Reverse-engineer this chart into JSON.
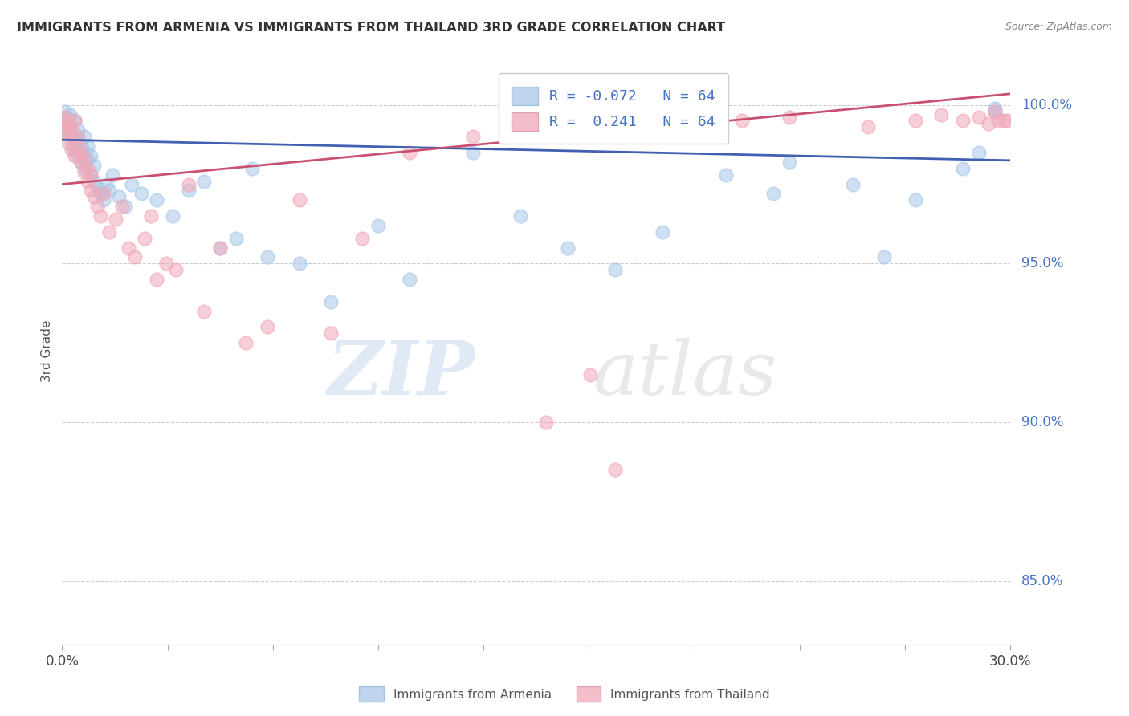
{
  "title": "IMMIGRANTS FROM ARMENIA VS IMMIGRANTS FROM THAILAND 3RD GRADE CORRELATION CHART",
  "source": "Source: ZipAtlas.com",
  "ylabel": "3rd Grade",
  "right_yticks": [
    85.0,
    90.0,
    95.0,
    100.0
  ],
  "right_ytick_labels": [
    "85.0%",
    "90.0%",
    "95.0%",
    "100.0%"
  ],
  "legend_text_1": "R = -0.072   N = 64",
  "legend_text_2": "R =  0.241   N = 64",
  "blue_color": "#a8c8e8",
  "pink_color": "#f0a8b8",
  "blue_line_color": "#4060b0",
  "pink_line_color": "#c85070",
  "watermark_zip": "ZIP",
  "watermark_atlas": "atlas",
  "xlim": [
    0.0,
    0.3
  ],
  "ylim": [
    83.0,
    101.5
  ],
  "blue_line": [
    [
      0.0,
      0.3
    ],
    [
      98.9,
      98.25
    ]
  ],
  "pink_line": [
    [
      0.0,
      0.3
    ],
    [
      97.5,
      100.35
    ]
  ],
  "blue_points_x": [
    0.0005,
    0.001,
    0.001,
    0.0015,
    0.002,
    0.002,
    0.0025,
    0.003,
    0.003,
    0.003,
    0.004,
    0.004,
    0.004,
    0.005,
    0.005,
    0.005,
    0.006,
    0.006,
    0.007,
    0.007,
    0.007,
    0.008,
    0.008,
    0.009,
    0.009,
    0.01,
    0.01,
    0.011,
    0.012,
    0.013,
    0.014,
    0.015,
    0.016,
    0.018,
    0.02,
    0.022,
    0.025,
    0.03,
    0.035,
    0.04,
    0.045,
    0.05,
    0.055,
    0.06,
    0.065,
    0.075,
    0.085,
    0.1,
    0.11,
    0.13,
    0.145,
    0.16,
    0.175,
    0.19,
    0.21,
    0.23,
    0.25,
    0.27,
    0.285,
    0.295,
    0.295,
    0.26,
    0.225,
    0.29
  ],
  "blue_points_y": [
    99.5,
    99.8,
    99.2,
    99.6,
    99.4,
    99.1,
    99.7,
    99.0,
    98.8,
    99.3,
    98.6,
    99.0,
    99.5,
    98.4,
    98.9,
    99.2,
    98.2,
    98.7,
    98.0,
    98.5,
    99.0,
    98.3,
    98.7,
    97.8,
    98.4,
    97.6,
    98.1,
    97.4,
    97.2,
    97.0,
    97.5,
    97.3,
    97.8,
    97.1,
    96.8,
    97.5,
    97.2,
    97.0,
    96.5,
    97.3,
    97.6,
    95.5,
    95.8,
    98.0,
    95.2,
    95.0,
    93.8,
    96.2,
    94.5,
    98.5,
    96.5,
    95.5,
    94.8,
    96.0,
    97.8,
    98.2,
    97.5,
    97.0,
    98.0,
    99.9,
    99.8,
    95.2,
    97.2,
    98.5
  ],
  "pink_points_x": [
    0.0005,
    0.001,
    0.001,
    0.0015,
    0.002,
    0.002,
    0.003,
    0.003,
    0.003,
    0.004,
    0.004,
    0.005,
    0.005,
    0.006,
    0.006,
    0.007,
    0.007,
    0.008,
    0.008,
    0.009,
    0.009,
    0.01,
    0.011,
    0.012,
    0.013,
    0.015,
    0.017,
    0.019,
    0.021,
    0.023,
    0.026,
    0.028,
    0.03,
    0.033,
    0.036,
    0.04,
    0.045,
    0.05,
    0.058,
    0.065,
    0.075,
    0.085,
    0.095,
    0.11,
    0.13,
    0.15,
    0.165,
    0.18,
    0.2,
    0.215,
    0.23,
    0.255,
    0.27,
    0.278,
    0.285,
    0.29,
    0.293,
    0.295,
    0.296,
    0.298,
    0.299,
    0.167,
    0.153,
    0.175
  ],
  "pink_points_y": [
    99.5,
    99.3,
    99.6,
    99.1,
    99.4,
    98.8,
    99.2,
    98.6,
    99.0,
    99.5,
    98.4,
    98.7,
    99.0,
    98.2,
    98.5,
    97.9,
    98.3,
    97.6,
    98.0,
    97.3,
    97.8,
    97.1,
    96.8,
    96.5,
    97.2,
    96.0,
    96.4,
    96.8,
    95.5,
    95.2,
    95.8,
    96.5,
    94.5,
    95.0,
    94.8,
    97.5,
    93.5,
    95.5,
    92.5,
    93.0,
    97.0,
    92.8,
    95.8,
    98.5,
    99.0,
    99.2,
    99.0,
    99.2,
    99.4,
    99.5,
    99.6,
    99.3,
    99.5,
    99.7,
    99.5,
    99.6,
    99.4,
    99.8,
    99.5,
    99.5,
    99.5,
    91.5,
    90.0,
    88.5
  ]
}
